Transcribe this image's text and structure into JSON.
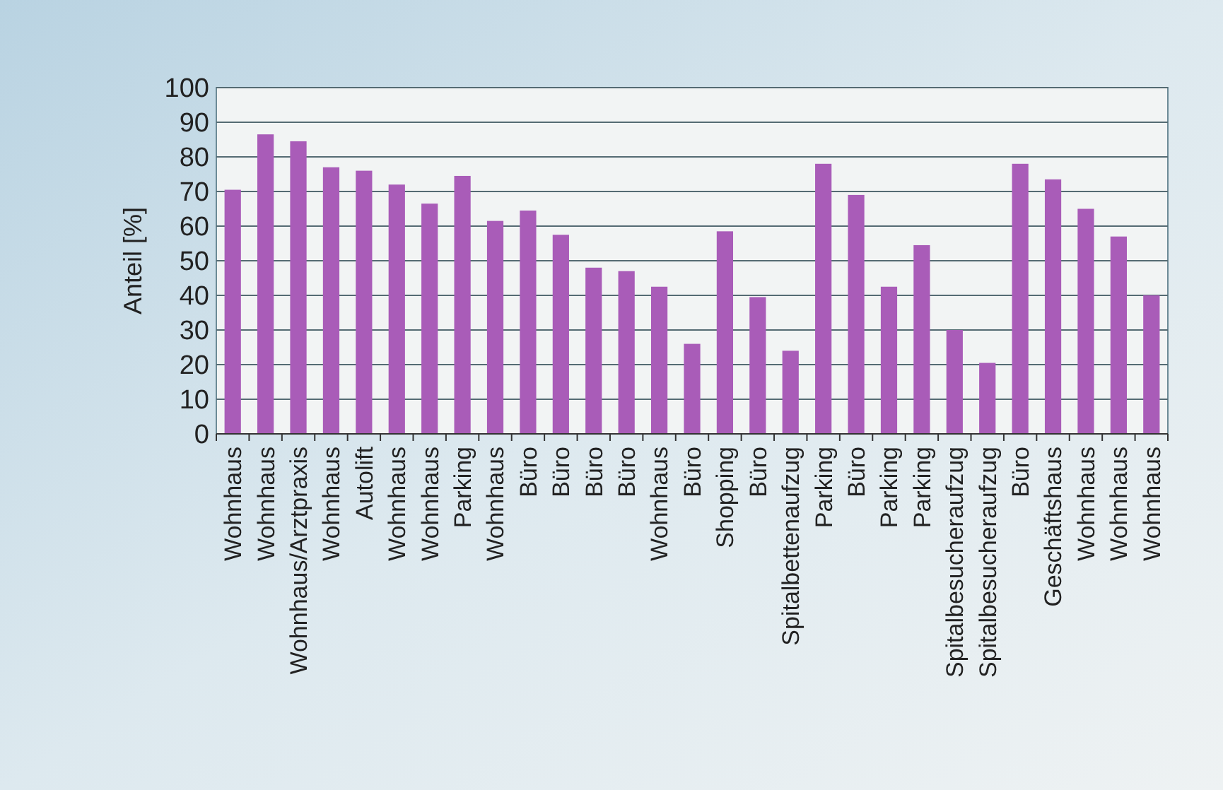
{
  "chart_data": {
    "type": "bar",
    "ylabel": "Anteil [%]",
    "categories": [
      "Wohnhaus",
      "Wohnhaus",
      "Wohnhaus/Arztpraxis",
      "Wohnhaus",
      "Autolift",
      "Wohnhaus",
      "Wohnhaus",
      "Parking",
      "Wohnhaus",
      "Büro",
      "Büro",
      "Büro",
      "Büro",
      "Wohnhaus",
      "Büro",
      "Shopping",
      "Büro",
      "Spitalbettenaufzug",
      "Parking",
      "Büro",
      "Parking",
      "Parking",
      "Spitalbesucheraufzug",
      "Spitalbesucheraufzug",
      "Büro",
      "Geschäftshaus",
      "Wohnhaus",
      "Wohnhaus",
      "Wohnhaus"
    ],
    "values": [
      70.5,
      86.5,
      84.5,
      77,
      76,
      72,
      66.5,
      74.5,
      61.5,
      64.5,
      57.5,
      48,
      47,
      42.5,
      26,
      58.5,
      39.5,
      24,
      78,
      69,
      42.5,
      54.5,
      30,
      20.5,
      78,
      73.5,
      65,
      57,
      40
    ],
    "color": "#a95cb8",
    "ylim": [
      0,
      100
    ],
    "yticks": [
      0,
      10,
      20,
      30,
      40,
      50,
      60,
      70,
      80,
      90,
      100
    ],
    "grid": "y"
  }
}
